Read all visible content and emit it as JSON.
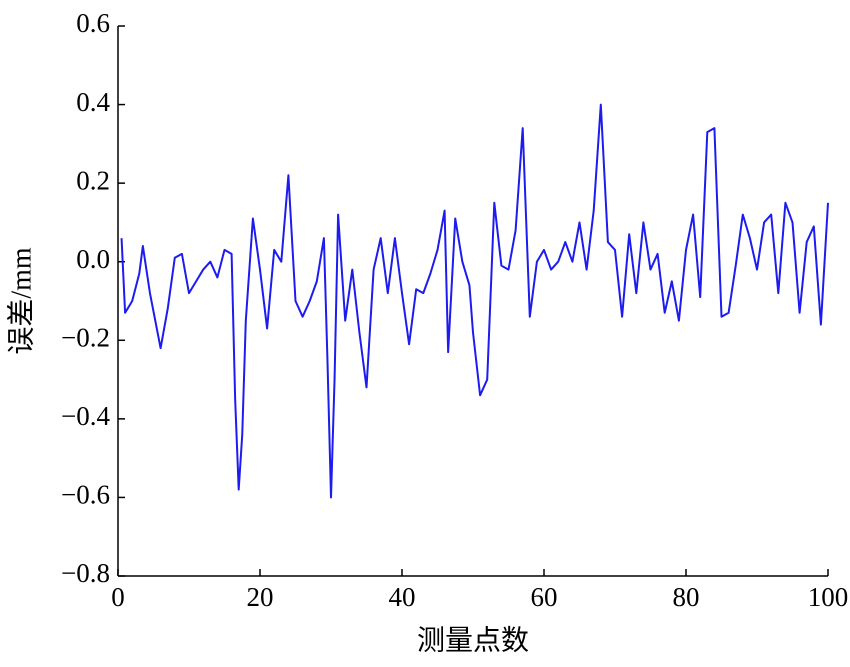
{
  "chart_data": {
    "type": "line",
    "xlabel": "测量点数",
    "ylabel": "误差/mm",
    "x": [
      0.5,
      1,
      2,
      3,
      3.5,
      4.5,
      6,
      7,
      8,
      9,
      10,
      11,
      12,
      13,
      14,
      15,
      16,
      16.5,
      17,
      17.5,
      18,
      19,
      20,
      21,
      22,
      23,
      24,
      25,
      26,
      27,
      28,
      29,
      29.5,
      30,
      30.5,
      31,
      32,
      33,
      34,
      35,
      36,
      37,
      38,
      39,
      40,
      41,
      42,
      43,
      44,
      45,
      46,
      46.5,
      47.5,
      48.5,
      49.5,
      50,
      51,
      52,
      53,
      54,
      55,
      56,
      57,
      58,
      59,
      60,
      61,
      62,
      63,
      64,
      65,
      66,
      67,
      68,
      69,
      70,
      71,
      72,
      73,
      74,
      75,
      76,
      77,
      78,
      79,
      80,
      81,
      82,
      83,
      84,
      85,
      86,
      87,
      88,
      89,
      90,
      91,
      92,
      93,
      94,
      95,
      96,
      97,
      98,
      99,
      100
    ],
    "series": [
      {
        "color": "#1c1cf0",
        "values": [
          0.06,
          -0.13,
          -0.1,
          -0.03,
          0.04,
          -0.08,
          -0.22,
          -0.12,
          0.01,
          0.02,
          -0.08,
          -0.05,
          -0.02,
          0.0,
          -0.04,
          0.03,
          0.02,
          -0.35,
          -0.58,
          -0.44,
          -0.15,
          0.11,
          -0.02,
          -0.17,
          0.03,
          0.0,
          0.22,
          -0.1,
          -0.14,
          -0.1,
          -0.05,
          0.06,
          -0.25,
          -0.6,
          -0.3,
          0.12,
          -0.15,
          -0.02,
          -0.18,
          -0.32,
          -0.02,
          0.06,
          -0.08,
          0.06,
          -0.08,
          -0.21,
          -0.07,
          -0.08,
          -0.03,
          0.03,
          0.13,
          -0.23,
          0.11,
          0.0,
          -0.06,
          -0.18,
          -0.34,
          -0.3,
          0.15,
          -0.01,
          -0.02,
          0.08,
          0.34,
          -0.14,
          0.0,
          0.03,
          -0.02,
          0.0,
          0.05,
          0.0,
          0.1,
          -0.02,
          0.13,
          0.4,
          0.05,
          0.03,
          -0.14,
          0.07,
          -0.08,
          0.1,
          -0.02,
          0.02,
          -0.13,
          -0.05,
          -0.15,
          0.03,
          0.12,
          -0.09,
          0.33,
          0.34,
          -0.14,
          -0.13,
          -0.01,
          0.12,
          0.06,
          -0.02,
          0.1,
          0.12,
          -0.08,
          0.15,
          0.1,
          -0.13,
          0.05,
          0.09,
          -0.16,
          0.15
        ]
      }
    ],
    "xlim": [
      0,
      100
    ],
    "xticks": [
      0,
      20,
      40,
      60,
      80,
      100
    ],
    "ylim": [
      -0.8,
      0.6
    ],
    "yticks": [
      {
        "value": -0.8,
        "label": "−0.8"
      },
      {
        "value": -0.6,
        "label": "−0.6"
      },
      {
        "value": -0.4,
        "label": "−0.4"
      },
      {
        "value": -0.2,
        "label": "−0.2"
      },
      {
        "value": 0.0,
        "label": "0.0"
      },
      0.2,
      0.4,
      0.6
    ]
  }
}
